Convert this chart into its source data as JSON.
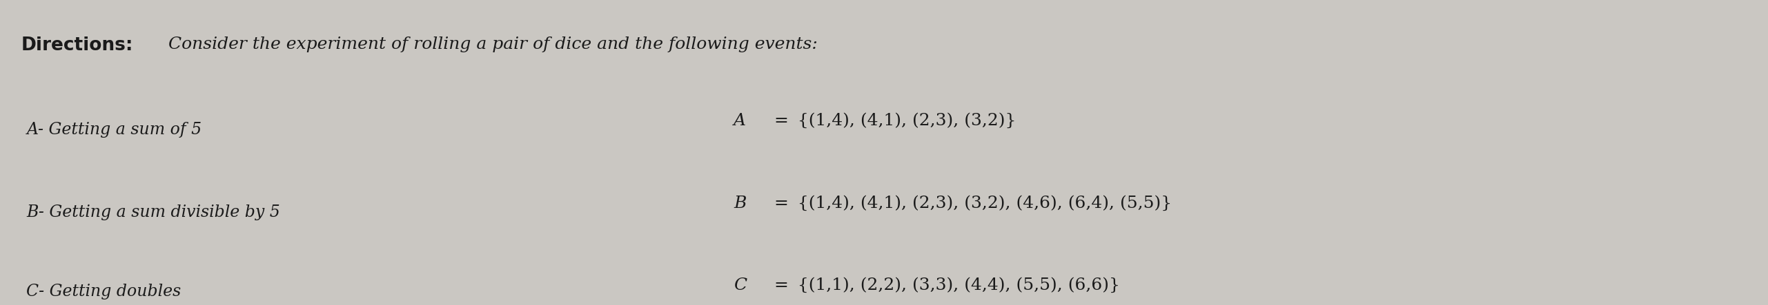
{
  "bg_color": "#cac7c2",
  "title_bold": "Directions:",
  "title_normal": " Consider the experiment of rolling a pair of dice and the following events:",
  "left_lines": [
    "A- Getting a sum of 5",
    "B- Getting a sum divisible by 5",
    "C- Getting doubles"
  ],
  "right_var": [
    "A",
    "B",
    "C"
  ],
  "right_sets": [
    " =  {(1,4), (4,1), (2,3), (3,2)}",
    " =  {(1,4), (4,1), (2,3), (3,2), (4,6), (6,4), (5,5)}",
    " =  {(1,1), (2,2), (3,3), (4,4), (5,5), (6,6)}"
  ],
  "text_color": "#1a1a1a",
  "fig_width": 25.62,
  "fig_height": 4.43,
  "dpi": 100
}
